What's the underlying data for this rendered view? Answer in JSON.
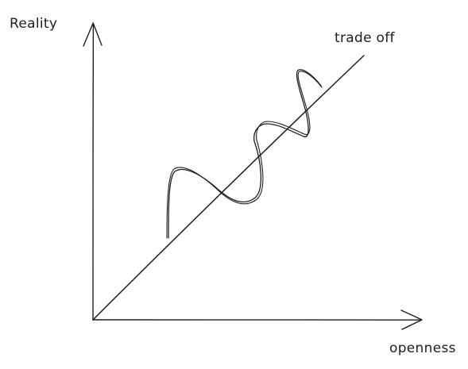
{
  "diagram": {
    "y_axis_label": "Reality",
    "x_axis_label": "openness",
    "line_label": "trade off",
    "stroke_color": "#1e1e1e",
    "background": "#ffffff"
  }
}
